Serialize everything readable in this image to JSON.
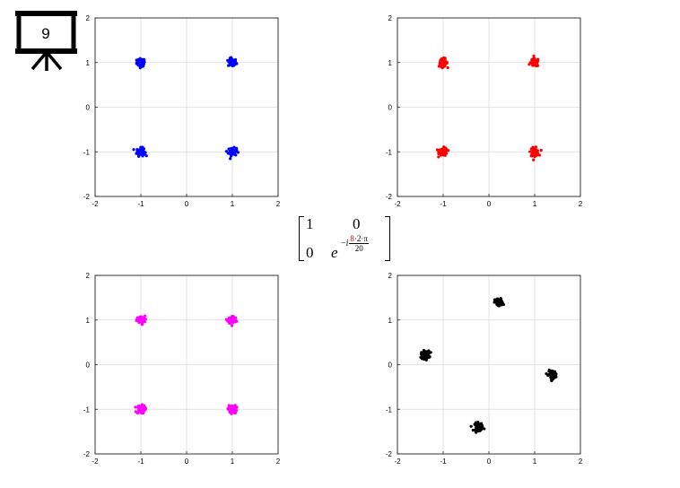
{
  "slide_number": "9",
  "matrix": {
    "a11": "1",
    "a12": "0",
    "a21": "0",
    "a22_base": "e",
    "exp_sign": "−",
    "exp_i": "i",
    "exp_num_highlight": "8",
    "exp_num_rest": "·2·π",
    "exp_den": "20"
  },
  "chart_data": [
    {
      "type": "scatter",
      "color": "#0000ff",
      "xlim": [
        -2,
        2
      ],
      "ylim": [
        -2,
        2
      ],
      "grid": true,
      "ticks": [
        "-2",
        "-1",
        "0",
        "1",
        "2"
      ],
      "clusters": [
        {
          "x": -1.0,
          "y": 1.0
        },
        {
          "x": 1.0,
          "y": 1.0
        },
        {
          "x": -1.0,
          "y": -1.0
        },
        {
          "x": 1.0,
          "y": -1.0
        }
      ]
    },
    {
      "type": "scatter",
      "color": "#ff0000",
      "xlim": [
        -2,
        2
      ],
      "ylim": [
        -2,
        2
      ],
      "grid": true,
      "ticks": [
        "-2",
        "-1",
        "0",
        "1",
        "2"
      ],
      "clusters": [
        {
          "x": -1.0,
          "y": 1.0
        },
        {
          "x": 1.0,
          "y": 1.0
        },
        {
          "x": -1.0,
          "y": -1.0
        },
        {
          "x": 1.0,
          "y": -1.0
        }
      ]
    },
    {
      "type": "scatter",
      "color": "#ff00ff",
      "xlim": [
        -2,
        2
      ],
      "ylim": [
        -2,
        2
      ],
      "grid": true,
      "ticks": [
        "-2",
        "-1",
        "0",
        "1",
        "2"
      ],
      "clusters": [
        {
          "x": -1.0,
          "y": 1.0
        },
        {
          "x": 1.0,
          "y": 1.0
        },
        {
          "x": -1.0,
          "y": -1.0
        },
        {
          "x": 1.0,
          "y": -1.0
        }
      ]
    },
    {
      "type": "scatter",
      "color": "#000000",
      "xlim": [
        -2,
        2
      ],
      "ylim": [
        -2,
        2
      ],
      "grid": true,
      "ticks": [
        "-2",
        "-1",
        "0",
        "1",
        "2"
      ],
      "clusters": [
        {
          "x": 0.22,
          "y": 1.39
        },
        {
          "x": -1.39,
          "y": 0.22
        },
        {
          "x": 1.39,
          "y": -0.22
        },
        {
          "x": -0.22,
          "y": -1.39
        }
      ]
    }
  ]
}
